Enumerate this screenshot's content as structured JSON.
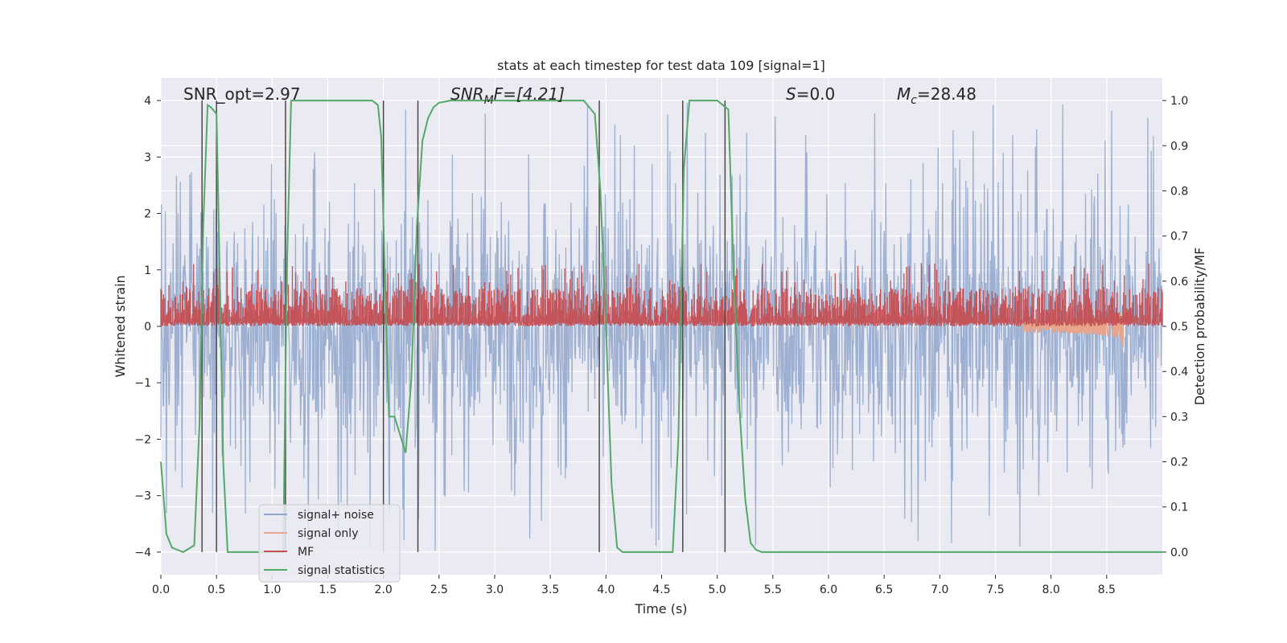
{
  "chart_data": {
    "type": "line",
    "title": "stats at each timestep for test data 109 [signal=1]",
    "xlabel": "Time (s)",
    "ylabel_left": "Whitened strain",
    "ylabel_right": "Detection probability/MF",
    "xlim": [
      0,
      9.0
    ],
    "ylim_left": [
      -4.4,
      4.4
    ],
    "ylim_right": [
      -0.05,
      1.05
    ],
    "xticks": [
      0.0,
      0.5,
      1.0,
      1.5,
      2.0,
      2.5,
      3.0,
      3.5,
      4.0,
      4.5,
      5.0,
      5.5,
      6.0,
      6.5,
      7.0,
      7.5,
      8.0,
      8.5
    ],
    "xtick_labels": [
      "0.0",
      "0.5",
      "1.0",
      "1.5",
      "2.0",
      "2.5",
      "3.0",
      "3.5",
      "4.0",
      "4.5",
      "5.0",
      "5.5",
      "6.0",
      "6.5",
      "7.0",
      "7.5",
      "8.0",
      "8.5"
    ],
    "yticks_left": [
      4,
      3,
      2,
      1,
      0,
      -1,
      -2,
      -3,
      -4
    ],
    "ytick_labels_left": [
      "4",
      "3",
      "2",
      "1",
      "0",
      "−1",
      "−2",
      "−3",
      "−4"
    ],
    "yticks_right": [
      1.0,
      0.9,
      0.8,
      0.7,
      0.6,
      0.5,
      0.4,
      0.3,
      0.2,
      0.1,
      0.0
    ],
    "ytick_labels_right": [
      "1.0",
      "0.9",
      "0.8",
      "0.7",
      "0.6",
      "0.5",
      "0.4",
      "0.3",
      "0.2",
      "0.1",
      "0.0"
    ],
    "grid": true,
    "legend_placement": "lower-left",
    "annotations": {
      "snr_opt": "SNR_opt=2.97",
      "snr_mf": {
        "base": "SNR",
        "sub": "M",
        "rest": "F=[4.21]"
      },
      "s": {
        "sym": "S",
        "rest": "=0.0"
      },
      "mc": {
        "sym": "M",
        "sub": "c",
        "rest": "=28.48"
      }
    },
    "series": [
      {
        "name": "signal+ noise",
        "color": "#8fa6cd",
        "axis": "left",
        "kind": "noise",
        "amplitude_typical": 1.5,
        "amplitude_peak": 4.0
      },
      {
        "name": "signal only",
        "color": "#e6a58c",
        "axis": "left",
        "kind": "chirp",
        "merger_time": 8.65,
        "peak_amplitude": 0.8
      },
      {
        "name": "MF",
        "color": "#c44e52",
        "axis": "right",
        "kind": "band",
        "baseline": 0.5,
        "typical_max": 0.58,
        "peak_max": 0.64
      },
      {
        "name": "signal statistics",
        "color": "#55a868",
        "axis": "right",
        "x": [
          0.0,
          0.05,
          0.1,
          0.2,
          0.3,
          0.35,
          0.38,
          0.42,
          0.45,
          0.5,
          0.53,
          0.56,
          0.6,
          0.63,
          0.7,
          1.0,
          1.1,
          1.13,
          1.17,
          1.22,
          1.3,
          1.9,
          1.95,
          1.98,
          2.02,
          2.05,
          2.1,
          2.2,
          2.25,
          2.3,
          2.35,
          2.4,
          2.45,
          2.5,
          2.6,
          3.8,
          3.9,
          3.95,
          4.0,
          4.05,
          4.1,
          4.15,
          4.2,
          4.6,
          4.65,
          4.7,
          4.75,
          4.8,
          5.0,
          5.05,
          5.1,
          5.15,
          5.2,
          5.25,
          5.3,
          5.35,
          5.4,
          9.0
        ],
        "y": [
          0.2,
          0.04,
          0.01,
          0.0,
          0.015,
          0.3,
          0.72,
          0.99,
          0.985,
          0.97,
          0.6,
          0.2,
          0.0,
          0.0,
          0.0,
          0.0,
          0.0,
          0.6,
          1.0,
          1.0,
          1.0,
          1.0,
          0.99,
          0.92,
          0.55,
          0.3,
          0.3,
          0.22,
          0.38,
          0.72,
          0.91,
          0.96,
          0.985,
          0.995,
          1.0,
          1.0,
          0.97,
          0.8,
          0.5,
          0.15,
          0.01,
          0.0,
          0.0,
          0.0,
          0.25,
          0.85,
          1.0,
          1.0,
          1.0,
          0.99,
          0.98,
          0.6,
          0.32,
          0.12,
          0.02,
          0.005,
          0.0,
          0.0
        ]
      }
    ],
    "vertical_lines": [
      0.37,
      0.5,
      1.12,
      2.0,
      2.31,
      3.94,
      4.69,
      5.07
    ]
  }
}
